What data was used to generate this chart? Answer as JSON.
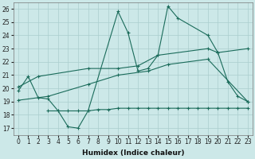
{
  "xlabel": "Humidex (Indice chaleur)",
  "xlim": [
    -0.5,
    23.5
  ],
  "ylim": [
    16.5,
    26.5
  ],
  "yticks": [
    17,
    18,
    19,
    20,
    21,
    22,
    23,
    24,
    25,
    26
  ],
  "xticks": [
    0,
    1,
    2,
    3,
    4,
    5,
    6,
    7,
    8,
    9,
    10,
    11,
    12,
    13,
    14,
    15,
    16,
    17,
    18,
    19,
    20,
    21,
    22,
    23
  ],
  "bg_color": "#cce8e8",
  "grid_color": "#aacece",
  "line_color": "#1a6b5a",
  "lines": [
    {
      "x": [
        0,
        1,
        2,
        3,
        4,
        5,
        6,
        7,
        10,
        11,
        12,
        13,
        14,
        15,
        16,
        19,
        20,
        21,
        22,
        23
      ],
      "y": [
        19.8,
        20.9,
        19.3,
        19.2,
        18.3,
        17.1,
        17.0,
        18.3,
        25.8,
        24.2,
        21.3,
        21.5,
        22.5,
        26.2,
        25.3,
        24.0,
        22.7,
        20.5,
        19.4,
        19.0
      ]
    },
    {
      "x": [
        0,
        2,
        7,
        10,
        12,
        14,
        19,
        20,
        23
      ],
      "y": [
        20.1,
        20.9,
        21.5,
        21.5,
        21.7,
        22.5,
        23.0,
        22.7,
        23.0
      ]
    },
    {
      "x": [
        0,
        3,
        7,
        10,
        13,
        15,
        19,
        23
      ],
      "y": [
        19.1,
        19.4,
        20.3,
        21.0,
        21.3,
        21.8,
        22.2,
        19.0
      ]
    },
    {
      "x": [
        3,
        4,
        5,
        6,
        7,
        8,
        9,
        10,
        11,
        12,
        13,
        14,
        15,
        16,
        17,
        18,
        19,
        20,
        21,
        22,
        23
      ],
      "y": [
        18.3,
        18.3,
        18.3,
        18.3,
        18.3,
        18.4,
        18.4,
        18.5,
        18.5,
        18.5,
        18.5,
        18.5,
        18.5,
        18.5,
        18.5,
        18.5,
        18.5,
        18.5,
        18.5,
        18.5,
        18.5
      ]
    }
  ]
}
